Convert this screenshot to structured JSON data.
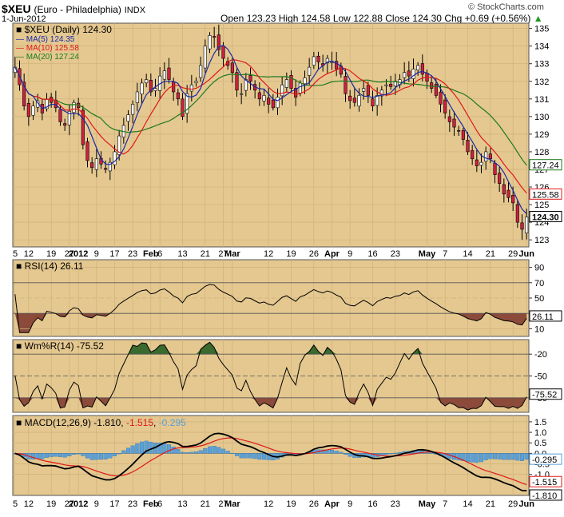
{
  "header": {
    "symbol": "$XEU",
    "name": "(Euro - Philadelphia)",
    "exchange": "INDX",
    "date": "1-Jun-2012",
    "source": "© StockCharts.com",
    "open_label": "Open",
    "open": "123.23",
    "high_label": "High",
    "high": "124.58",
    "low_label": "Low",
    "low": "122.88",
    "close_label": "Close",
    "close": "124.30",
    "chg_label": "Chg",
    "chg": "+0.69 (+0.56%)",
    "chg_arrow": "▲"
  },
  "legend": {
    "price": "$XEU (Daily) 124.30",
    "ma5": "MA(5) 124.35",
    "ma10": "MA(10) 125.58",
    "ma20": "MA(20) 127.24"
  },
  "colors": {
    "panel_bg": "#e4c890",
    "up": "#ffffff",
    "down": "#d02040",
    "ma5": "#1a2aa8",
    "ma10": "#e01818",
    "ma20": "#1e7a1e",
    "rsi_low": "#8b4a3a",
    "wmr_high": "#3a6a2e",
    "wmr_low": "#8b4a3a",
    "hist": "#5aa0d8"
  },
  "price_axis": {
    "ticks": [
      "123",
      "124",
      "125",
      "126",
      "127",
      "128",
      "129",
      "130",
      "131",
      "132",
      "133",
      "134",
      "135"
    ],
    "min": 122.6,
    "max": 135.3
  },
  "price_tags": {
    "close": "124.30",
    "ma10": "125.58",
    "ma20": "127.24"
  },
  "x_axis": {
    "labels": [
      "5",
      "12",
      "19",
      "27",
      "2012",
      "9",
      "17",
      "23",
      "Feb",
      "6",
      "13",
      "21",
      "27",
      "Mar",
      "12",
      "19",
      "26",
      "Apr",
      "9",
      "16",
      "23",
      "May",
      "7",
      "14",
      "21",
      "29",
      "Jun"
    ],
    "bold": [
      "2012",
      "Feb",
      "Mar",
      "Apr",
      "May",
      "Jun"
    ],
    "label_bar": [
      -1,
      3,
      8,
      12,
      14,
      18,
      22,
      26,
      30,
      32,
      37,
      42,
      46,
      48,
      56,
      61,
      66,
      70,
      74,
      79,
      84,
      91,
      95,
      100,
      105,
      110,
      113
    ]
  },
  "rsi": {
    "label": "RSI(14) 26.11",
    "value_tag": "26.11",
    "ticks": [
      "10",
      "30",
      "50",
      "70",
      "90"
    ],
    "min": 0,
    "max": 100
  },
  "wmr": {
    "label": "Wm%R(14) -75.52",
    "value_tag": "-75.52",
    "ticks": [
      "-20",
      "-50",
      "-80"
    ],
    "min": -100,
    "max": 0
  },
  "macd": {
    "label_name": "MACD(12,26,9)",
    "macd_value": "-1.810",
    "signal_value": "-1.515",
    "hist_value": "-0.295",
    "ticks": [
      "-1.0",
      "-0.5",
      "0.0",
      "0.5",
      "1.0",
      "1.5"
    ],
    "tags": {
      "hist": "-0.295",
      "signal": "-1.515",
      "macd": "-1.810"
    },
    "min": -2.0,
    "max": 1.8
  },
  "chart_data": {
    "type": "candlestick",
    "title": "$XEU (Euro - Philadelphia) INDX",
    "series_anchors": [
      {
        "bar": 0,
        "close": 132.8
      },
      {
        "bar": 1,
        "close": 131.8
      },
      {
        "bar": 2,
        "close": 130.6
      },
      {
        "bar": 3,
        "close": 130.0
      },
      {
        "bar": 4,
        "close": 130.6
      },
      {
        "bar": 5,
        "close": 130.9
      },
      {
        "bar": 6,
        "close": 130.2
      },
      {
        "bar": 7,
        "close": 131.0
      },
      {
        "bar": 8,
        "close": 130.8
      },
      {
        "bar": 9,
        "close": 130.5
      },
      {
        "bar": 10,
        "close": 129.7
      },
      {
        "bar": 11,
        "close": 129.5
      },
      {
        "bar": 12,
        "close": 130.3
      },
      {
        "bar": 13,
        "close": 130.8
      },
      {
        "bar": 14,
        "close": 130.5
      },
      {
        "bar": 15,
        "close": 128.4
      },
      {
        "bar": 16,
        "close": 127.5
      },
      {
        "bar": 17,
        "close": 127.1
      },
      {
        "bar": 18,
        "close": 127.6
      },
      {
        "bar": 19,
        "close": 127.3
      },
      {
        "bar": 20,
        "close": 127.0
      },
      {
        "bar": 21,
        "close": 127.4
      },
      {
        "bar": 22,
        "close": 128.0
      },
      {
        "bar": 23,
        "close": 128.9
      },
      {
        "bar": 24,
        "close": 129.5
      },
      {
        "bar": 25,
        "close": 130.1
      },
      {
        "bar": 26,
        "close": 130.7
      },
      {
        "bar": 27,
        "close": 131.4
      },
      {
        "bar": 28,
        "close": 131.9
      },
      {
        "bar": 29,
        "close": 132.1
      },
      {
        "bar": 30,
        "close": 131.4
      },
      {
        "bar": 31,
        "close": 131.6
      },
      {
        "bar": 32,
        "close": 132.3
      },
      {
        "bar": 33,
        "close": 132.6
      },
      {
        "bar": 34,
        "close": 132.1
      },
      {
        "bar": 35,
        "close": 131.4
      },
      {
        "bar": 36,
        "close": 131.0
      },
      {
        "bar": 37,
        "close": 130.0
      },
      {
        "bar": 38,
        "close": 131.3
      },
      {
        "bar": 39,
        "close": 131.8
      },
      {
        "bar": 40,
        "close": 132.0
      },
      {
        "bar": 41,
        "close": 132.9
      },
      {
        "bar": 42,
        "close": 134.0
      },
      {
        "bar": 43,
        "close": 134.6
      },
      {
        "bar": 44,
        "close": 134.5
      },
      {
        "bar": 45,
        "close": 133.8
      },
      {
        "bar": 46,
        "close": 133.3
      },
      {
        "bar": 47,
        "close": 132.9
      },
      {
        "bar": 48,
        "close": 132.5
      },
      {
        "bar": 49,
        "close": 131.5
      },
      {
        "bar": 50,
        "close": 131.3
      },
      {
        "bar": 51,
        "close": 132.1
      },
      {
        "bar": 52,
        "close": 132.0
      },
      {
        "bar": 53,
        "close": 131.5
      },
      {
        "bar": 54,
        "close": 131.0
      },
      {
        "bar": 55,
        "close": 131.2
      },
      {
        "bar": 56,
        "close": 130.7
      },
      {
        "bar": 57,
        "close": 130.5
      },
      {
        "bar": 58,
        "close": 131.1
      },
      {
        "bar": 59,
        "close": 131.8
      },
      {
        "bar": 60,
        "close": 132.1
      },
      {
        "bar": 61,
        "close": 131.6
      },
      {
        "bar": 62,
        "close": 131.1
      },
      {
        "bar": 63,
        "close": 131.9
      },
      {
        "bar": 64,
        "close": 132.2
      },
      {
        "bar": 65,
        "close": 132.8
      },
      {
        "bar": 66,
        "close": 133.4
      },
      {
        "bar": 67,
        "close": 133.1
      },
      {
        "bar": 68,
        "close": 132.9
      },
      {
        "bar": 69,
        "close": 133.3
      },
      {
        "bar": 70,
        "close": 133.1
      },
      {
        "bar": 71,
        "close": 132.7
      },
      {
        "bar": 72,
        "close": 132.4
      },
      {
        "bar": 73,
        "close": 131.3
      },
      {
        "bar": 74,
        "close": 130.9
      },
      {
        "bar": 75,
        "close": 130.8
      },
      {
        "bar": 76,
        "close": 131.2
      },
      {
        "bar": 77,
        "close": 131.6
      },
      {
        "bar": 78,
        "close": 131.2
      },
      {
        "bar": 79,
        "close": 130.6
      },
      {
        "bar": 80,
        "close": 131.2
      },
      {
        "bar": 81,
        "close": 131.5
      },
      {
        "bar": 82,
        "close": 131.8
      },
      {
        "bar": 83,
        "close": 131.7
      },
      {
        "bar": 84,
        "close": 132.0
      },
      {
        "bar": 85,
        "close": 132.1
      },
      {
        "bar": 86,
        "close": 132.5
      },
      {
        "bar": 87,
        "close": 132.3
      },
      {
        "bar": 88,
        "close": 132.7
      },
      {
        "bar": 89,
        "close": 132.9
      },
      {
        "bar": 90,
        "close": 132.4
      },
      {
        "bar": 91,
        "close": 132.0
      },
      {
        "bar": 92,
        "close": 131.6
      },
      {
        "bar": 93,
        "close": 131.2
      },
      {
        "bar": 94,
        "close": 130.7
      },
      {
        "bar": 95,
        "close": 130.2
      },
      {
        "bar": 96,
        "close": 129.7
      },
      {
        "bar": 97,
        "close": 129.4
      },
      {
        "bar": 98,
        "close": 129.2
      },
      {
        "bar": 99,
        "close": 128.7
      },
      {
        "bar": 100,
        "close": 128.0
      },
      {
        "bar": 101,
        "close": 127.6
      },
      {
        "bar": 102,
        "close": 127.2
      },
      {
        "bar": 103,
        "close": 127.4
      },
      {
        "bar": 104,
        "close": 128.0
      },
      {
        "bar": 105,
        "close": 127.6
      },
      {
        "bar": 106,
        "close": 126.7
      },
      {
        "bar": 107,
        "close": 126.2
      },
      {
        "bar": 108,
        "close": 125.6
      },
      {
        "bar": 109,
        "close": 125.4
      },
      {
        "bar": 110,
        "close": 125.1
      },
      {
        "bar": 111,
        "close": 124.0
      },
      {
        "bar": 112,
        "close": 123.6
      },
      {
        "bar": 113,
        "close": 124.3
      }
    ],
    "ylim": [
      122.6,
      135.3
    ]
  }
}
